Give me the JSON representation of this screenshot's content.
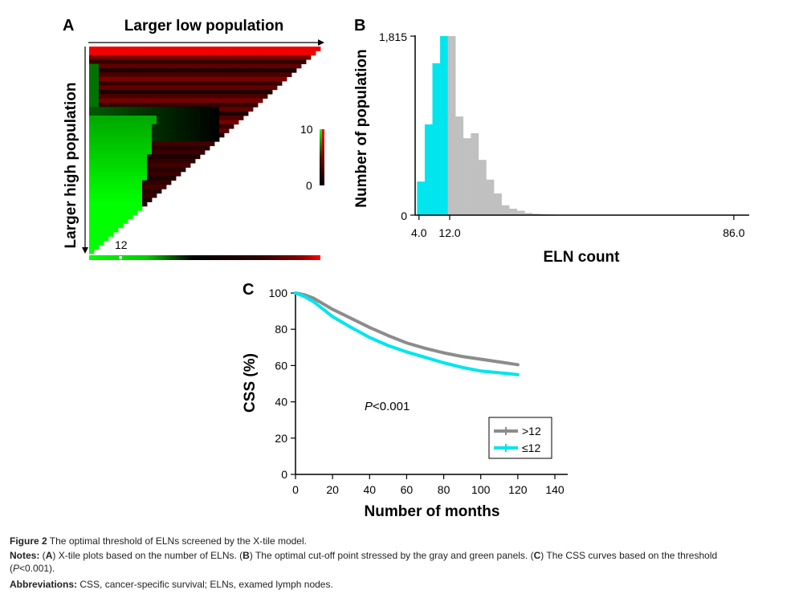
{
  "panel_labels": {
    "a": "A",
    "b": "B",
    "c": "C"
  },
  "xtile": {
    "top_label": "Larger low population",
    "left_label": "Larger high population",
    "marker_label": "12",
    "colorbar_max": "10",
    "colorbar_min": "0",
    "colors": {
      "low": "#00ff00",
      "mid": "#000000",
      "high": "#ff0000"
    }
  },
  "chart_data": [
    {
      "type": "bar",
      "panel": "B",
      "title": "",
      "xlabel": "ELN count",
      "ylabel": "Number of population",
      "ylim": [
        0,
        1815
      ],
      "y_tick_labels": [
        "0",
        "1,815"
      ],
      "x_tick_labels": [
        "4.0",
        "12.0",
        "86.0"
      ],
      "x_ticks": [
        4,
        12,
        86
      ],
      "xlim": [
        3,
        90
      ],
      "cutoff": 12,
      "colors": {
        "low_group": "#00e5ee",
        "high_group": "#c0c0c0"
      },
      "bars": [
        {
          "x": 4,
          "value": 340
        },
        {
          "x": 5,
          "value": 340
        },
        {
          "x": 6,
          "value": 920
        },
        {
          "x": 7,
          "value": 920
        },
        {
          "x": 8,
          "value": 1540
        },
        {
          "x": 9,
          "value": 1540
        },
        {
          "x": 10,
          "value": 1815
        },
        {
          "x": 11,
          "value": 1815
        },
        {
          "x": 12,
          "value": 1815
        },
        {
          "x": 13,
          "value": 1815
        },
        {
          "x": 14,
          "value": 1000
        },
        {
          "x": 15,
          "value": 1000
        },
        {
          "x": 16,
          "value": 780
        },
        {
          "x": 17,
          "value": 780
        },
        {
          "x": 18,
          "value": 830
        },
        {
          "x": 19,
          "value": 830
        },
        {
          "x": 20,
          "value": 560
        },
        {
          "x": 21,
          "value": 560
        },
        {
          "x": 22,
          "value": 360
        },
        {
          "x": 23,
          "value": 360
        },
        {
          "x": 24,
          "value": 220
        },
        {
          "x": 25,
          "value": 220
        },
        {
          "x": 26,
          "value": 100
        },
        {
          "x": 27,
          "value": 100
        },
        {
          "x": 28,
          "value": 65
        },
        {
          "x": 29,
          "value": 65
        },
        {
          "x": 30,
          "value": 45
        },
        {
          "x": 31,
          "value": 45
        },
        {
          "x": 32,
          "value": 22
        },
        {
          "x": 33,
          "value": 22
        },
        {
          "x": 34,
          "value": 14
        },
        {
          "x": 35,
          "value": 14
        },
        {
          "x": 36,
          "value": 10
        },
        {
          "x": 37,
          "value": 10
        },
        {
          "x": 38,
          "value": 6
        },
        {
          "x": 39,
          "value": 6
        }
      ]
    },
    {
      "type": "line",
      "panel": "C",
      "title": "",
      "xlabel": "Number of months",
      "ylabel": "CSS (%)",
      "xlim": [
        0,
        140
      ],
      "ylim": [
        0,
        100
      ],
      "x_ticks": [
        0,
        20,
        40,
        60,
        80,
        100,
        120,
        140
      ],
      "y_ticks": [
        0,
        20,
        40,
        60,
        80,
        100
      ],
      "annotation": {
        "italic": "P",
        "text": "<0.001"
      },
      "legend_position": "bottom-right",
      "series": [
        {
          "name": ">12",
          "color": "#8c8c8c",
          "x": [
            0,
            5,
            10,
            15,
            20,
            30,
            40,
            50,
            60,
            70,
            80,
            90,
            100,
            110,
            120
          ],
          "y": [
            100,
            99,
            97,
            94,
            91,
            86,
            81,
            76.5,
            72.5,
            69.5,
            67,
            65,
            63.5,
            62,
            60.5
          ]
        },
        {
          "name": "≤12",
          "color": "#00e5ee",
          "x": [
            0,
            5,
            10,
            15,
            20,
            30,
            40,
            50,
            60,
            70,
            80,
            90,
            100,
            110,
            120
          ],
          "y": [
            100,
            98,
            95,
            91,
            87,
            81,
            75.5,
            71,
            67.5,
            64.5,
            61.5,
            59,
            57,
            56,
            55
          ]
        }
      ]
    }
  ],
  "caption": {
    "figure_label": "Figure 2",
    "figure_text": " The optimal threshold of ELNs screened by the X-tile model.",
    "notes_label": "Notes:",
    "notes_a_open": " (",
    "notes_a": "A",
    "notes_a_text": ") X-tile plots based on the number of ELNs. (",
    "notes_b": "B",
    "notes_b_text": ") The optimal cut-off point stressed by the gray and green panels. (",
    "notes_c": "C",
    "notes_c_text": ") The CSS curves based on the threshold",
    "notes_line2_open": "(",
    "notes_line2_italic": "P",
    "notes_line2_text": "<0.001).",
    "abbr_label": "Abbreviations:",
    "abbr_text": " CSS, cancer-specific survival; ELNs, examed lymph nodes."
  }
}
